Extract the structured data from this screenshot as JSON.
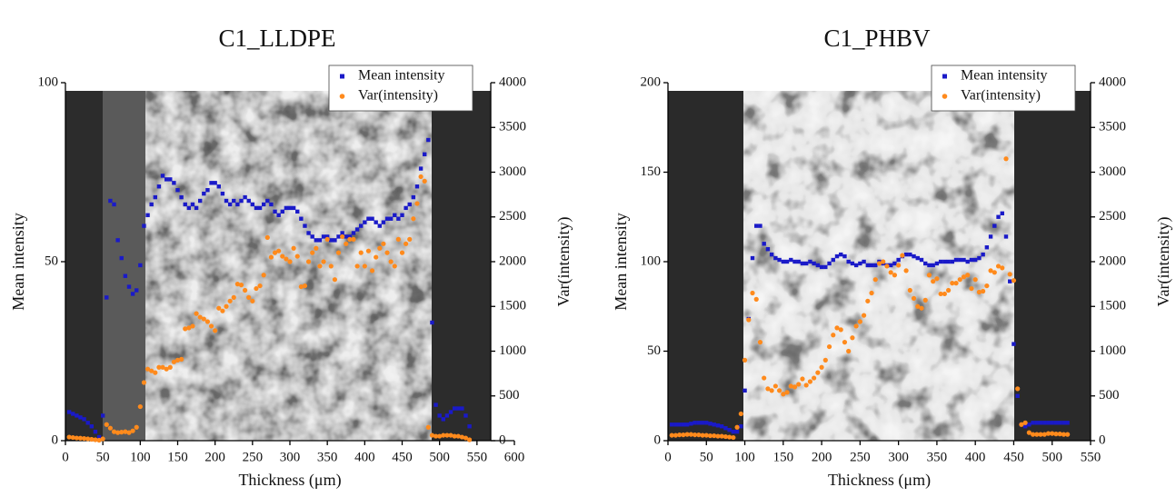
{
  "chart_data": [
    {
      "type": "scatter",
      "title": "C1_LLDPE",
      "xlabel": "Thickness (μm)",
      "ylabel": "Mean intensity",
      "y2label": "Var(intensity)",
      "x": [
        5,
        10,
        15,
        20,
        25,
        30,
        35,
        40,
        45,
        50,
        55,
        60,
        65,
        70,
        75,
        80,
        85,
        90,
        95,
        100,
        105,
        110,
        115,
        120,
        125,
        130,
        135,
        140,
        145,
        150,
        155,
        160,
        165,
        170,
        175,
        180,
        185,
        190,
        195,
        200,
        205,
        210,
        215,
        220,
        225,
        230,
        235,
        240,
        245,
        250,
        255,
        260,
        265,
        270,
        275,
        280,
        285,
        290,
        295,
        300,
        305,
        310,
        315,
        320,
        325,
        330,
        335,
        340,
        345,
        350,
        355,
        360,
        365,
        370,
        375,
        380,
        385,
        390,
        395,
        400,
        405,
        410,
        415,
        420,
        425,
        430,
        435,
        440,
        445,
        450,
        455,
        460,
        465,
        470,
        475,
        480,
        485,
        490,
        495,
        500,
        505,
        510,
        515,
        520,
        525,
        530,
        535,
        540,
        545
      ],
      "series": [
        {
          "name": "Mean intensity",
          "color": "#1a1ac8",
          "marker": "square",
          "axis": "y",
          "values": [
            8,
            7.5,
            7,
            6.5,
            6,
            5,
            4,
            2.5,
            1,
            7,
            40,
            67,
            66,
            56,
            51,
            46,
            43,
            41,
            42,
            49,
            60,
            63,
            66,
            68,
            71,
            74,
            73,
            73,
            72,
            70,
            68,
            66,
            65,
            66,
            65,
            67,
            69,
            70,
            72,
            72,
            71,
            69,
            67,
            66,
            67,
            66,
            67,
            68,
            67,
            66,
            65,
            65,
            66,
            67,
            66,
            64,
            63,
            64,
            65,
            65,
            65,
            64,
            62,
            60,
            58,
            57,
            56,
            56,
            57,
            57,
            56,
            56,
            57,
            58,
            57,
            57,
            58,
            59,
            60,
            61,
            62,
            62,
            61,
            60,
            61,
            62,
            62,
            63,
            62,
            63,
            65,
            66,
            68,
            71,
            76,
            80,
            84,
            33,
            10,
            7,
            6,
            7,
            8,
            9,
            9,
            9,
            7,
            4,
            null
          ]
        },
        {
          "name": "Var(intensity)",
          "color": "#ff8a1c",
          "marker": "circle",
          "axis": "y2",
          "values": [
            40,
            35,
            30,
            28,
            25,
            20,
            15,
            10,
            5,
            20,
            180,
            140,
            100,
            90,
            95,
            100,
            90,
            110,
            150,
            380,
            650,
            800,
            780,
            760,
            820,
            820,
            800,
            820,
            880,
            900,
            910,
            1250,
            1260,
            1280,
            1420,
            1380,
            1360,
            1330,
            1280,
            1230,
            1480,
            1450,
            1500,
            1560,
            1600,
            1750,
            1740,
            1680,
            1600,
            1560,
            1700,
            1730,
            1850,
            2270,
            2050,
            2100,
            2120,
            2060,
            2030,
            2000,
            2150,
            2060,
            1720,
            1730,
            2000,
            2100,
            2150,
            1950,
            2000,
            2250,
            1950,
            1800,
            2100,
            2280,
            2200,
            2250,
            2250,
            1950,
            2100,
            1950,
            2120,
            1900,
            2050,
            2150,
            2200,
            2100,
            2000,
            1950,
            2250,
            2100,
            2200,
            2250,
            2480,
            2650,
            2950,
            2900,
            150,
            60,
            50,
            50,
            60,
            60,
            60,
            50,
            50,
            40,
            30,
            10,
            null
          ]
        }
      ],
      "xlim": [
        0,
        600
      ],
      "xticks": [
        0,
        50,
        100,
        150,
        200,
        250,
        300,
        350,
        400,
        450,
        500,
        550,
        600
      ],
      "ylim": [
        0,
        100
      ],
      "yticks": [
        0,
        50,
        100
      ],
      "y2lim": [
        0,
        4000
      ],
      "y2ticks": [
        0,
        500,
        1000,
        1500,
        2000,
        2500,
        3000,
        3500,
        4000
      ],
      "legend": "upper right"
    },
    {
      "type": "scatter",
      "title": "C1_PHBV",
      "xlabel": "Thickness (μm)",
      "ylabel": "Mean intensity",
      "y2label": "Var(intensity)",
      "x": [
        5,
        10,
        15,
        20,
        25,
        30,
        35,
        40,
        45,
        50,
        55,
        60,
        65,
        70,
        75,
        80,
        85,
        90,
        95,
        100,
        105,
        110,
        115,
        120,
        125,
        130,
        135,
        140,
        145,
        150,
        155,
        160,
        165,
        170,
        175,
        180,
        185,
        190,
        195,
        200,
        205,
        210,
        215,
        220,
        225,
        230,
        235,
        240,
        245,
        250,
        255,
        260,
        265,
        270,
        275,
        280,
        285,
        290,
        295,
        300,
        305,
        310,
        315,
        320,
        325,
        330,
        335,
        340,
        345,
        350,
        355,
        360,
        365,
        370,
        375,
        380,
        385,
        390,
        395,
        400,
        405,
        410,
        415,
        420,
        425,
        430,
        435,
        440,
        445,
        450,
        455,
        460,
        465,
        470,
        475,
        480,
        485,
        490,
        495,
        500,
        505,
        510,
        515,
        520
      ],
      "series": [
        {
          "name": "Mean intensity",
          "color": "#1a1ac8",
          "marker": "square",
          "axis": "y",
          "values": [
            9,
            9,
            9,
            9,
            9,
            9.5,
            10,
            10,
            10,
            10,
            9.5,
            9,
            8.5,
            8,
            7,
            6,
            5,
            5,
            8,
            28,
            68,
            102,
            120,
            120,
            110,
            107,
            104,
            102,
            101,
            100,
            100,
            101,
            100,
            100,
            99,
            99,
            100,
            99,
            98,
            97,
            97,
            99,
            101,
            103,
            104,
            103,
            100,
            99,
            98,
            99,
            100,
            98,
            98,
            98,
            100,
            99,
            98,
            98,
            99,
            101,
            103,
            104,
            104,
            103,
            102,
            101,
            99,
            98,
            98,
            99,
            100,
            100,
            100,
            100,
            101,
            101,
            101,
            100,
            101,
            101,
            102,
            104,
            108,
            114,
            120,
            125,
            127,
            114,
            89,
            54,
            25,
            9,
            8,
            9,
            10,
            10,
            10,
            10,
            10,
            10,
            10,
            10,
            10,
            10
          ]
        },
        {
          "name": "Var(intensity)",
          "color": "#ff8a1c",
          "marker": "circle",
          "axis": "y2",
          "values": [
            60,
            60,
            65,
            65,
            70,
            70,
            65,
            65,
            60,
            60,
            55,
            55,
            50,
            50,
            45,
            40,
            35,
            150,
            300,
            900,
            1350,
            1650,
            1580,
            1100,
            700,
            580,
            560,
            610,
            560,
            520,
            540,
            610,
            600,
            630,
            690,
            620,
            660,
            700,
            760,
            820,
            900,
            1050,
            1180,
            1260,
            1240,
            1100,
            1000,
            1150,
            1280,
            1330,
            1400,
            1560,
            1650,
            1800,
            1980,
            2000,
            1950,
            1880,
            1850,
            1960,
            2070,
            1900,
            1680,
            1590,
            1500,
            1480,
            1570,
            1850,
            1780,
            1810,
            1640,
            1640,
            1680,
            1760,
            1760,
            1800,
            1830,
            1850,
            1700,
            1800,
            1660,
            1670,
            1730,
            1900,
            1880,
            1950,
            1930,
            3150,
            1860,
            1790,
            580,
            180,
            200,
            90,
            70,
            70,
            70,
            70,
            80,
            80,
            75,
            75,
            70,
            70
          ]
        }
      ],
      "xlim": [
        0,
        550
      ],
      "xticks": [
        0,
        50,
        100,
        150,
        200,
        250,
        300,
        350,
        400,
        450,
        500,
        550
      ],
      "ylim": [
        0,
        200
      ],
      "yticks": [
        0,
        50,
        100,
        150,
        200
      ],
      "y2lim": [
        0,
        4000
      ],
      "y2ticks": [
        0,
        500,
        1000,
        1500,
        2000,
        2500,
        3000,
        3500,
        4000
      ],
      "legend": "upper right"
    }
  ]
}
